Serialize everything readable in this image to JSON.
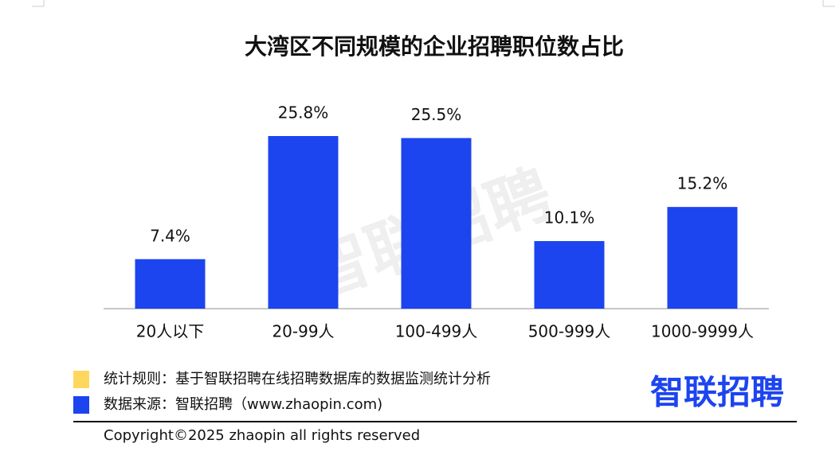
{
  "chart_data": {
    "type": "bar",
    "title": "大湾区不同规模的企业招聘职位数占比",
    "categories": [
      "20人以下",
      "20-99人",
      "100-499人",
      "500-999人",
      "1000-9999人"
    ],
    "values": [
      7.4,
      25.8,
      25.5,
      10.1,
      15.2
    ],
    "value_labels": [
      "7.4%",
      "25.8%",
      "25.5%",
      "10.1%",
      "15.2%"
    ],
    "color": "#1c44ef",
    "watermark": "智联招聘"
  },
  "footer": {
    "notes": [
      {
        "color": "#fdd85d",
        "text": "统计规则：基于智联招聘在线招聘数据库的数据监测统计分析"
      },
      {
        "color": "#1c44ef",
        "text": "数据来源：智联招聘（www.zhaopin.com)"
      }
    ],
    "logo": "智联招聘",
    "copyright": "Copyright©2025 zhaopin all rights reserved"
  }
}
